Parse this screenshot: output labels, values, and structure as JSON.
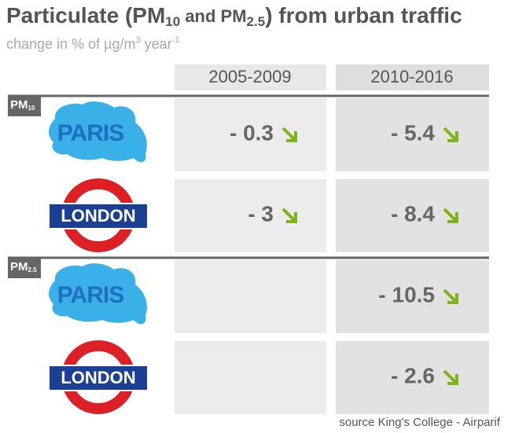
{
  "header": {
    "title": [
      "Particulate (PM",
      "10",
      " and PM",
      "2.5",
      ") from urban traffic"
    ],
    "subtitle": [
      "change in % of µg/m",
      "3",
      " year",
      "-1"
    ]
  },
  "table": {
    "columns": [
      "2005-2009",
      "2010-2016"
    ],
    "sections": [
      {
        "label": [
          "PM",
          "10"
        ],
        "rows": [
          {
            "city": "PARIS",
            "values": [
              "- 0.3",
              "- 5.4"
            ]
          },
          {
            "city": "LONDON",
            "values": [
              "- 3",
              "- 8.4"
            ]
          }
        ]
      },
      {
        "label": [
          "PM",
          "2.5"
        ],
        "rows": [
          {
            "city": "PARIS",
            "values": [
              null,
              "- 10.5"
            ]
          },
          {
            "city": "LONDON",
            "values": [
              null,
              "- 2.6"
            ]
          }
        ]
      }
    ]
  },
  "footer": {
    "source": "source King's College - Airparif"
  }
}
